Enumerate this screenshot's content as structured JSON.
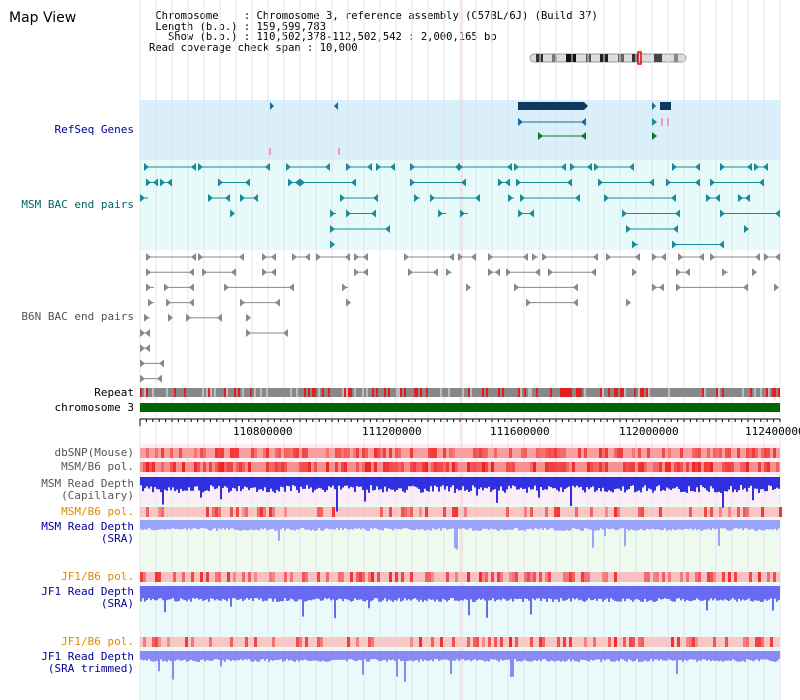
{
  "title": "Map View",
  "info": {
    "chromosome_key": "Chromosome",
    "chromosome_val": "Chromosome 3, reference assembly (C57BL/6J) (Build 37)",
    "length_key": "Length (b.p.)",
    "length_val": "159,599,783",
    "show_key": "Show (b.p.)",
    "show_val": "110,502,378-112,502,542 : 2,000,165 bp",
    "coverage_key": "Read coverage check span",
    "coverage_val": "10,000"
  },
  "tracks": {
    "refseq": "RefSeq Genes",
    "msm_bac": "MSM BAC end pairs",
    "b6n_bac": "B6N BAC end pairs",
    "repeat": "Repeat",
    "chromosome": "chromosome 3",
    "dbsnp": "dbSNP(Mouse)",
    "msm_b6_pol": "MSM/B6 pol.",
    "msm_read_depth_cap_1": "MSM Read Depth",
    "msm_read_depth_cap_2": "(Capillary)",
    "msm_b6_pol_2": "MSM/B6 pol.",
    "msm_read_depth_sra_1": "MSM Read Depth",
    "msm_read_depth_sra_2": "(SRA)",
    "jf1_b6_pol": "JF1/B6 pol.",
    "jf1_read_depth_sra_1": "JF1 Read Depth",
    "jf1_read_depth_sra_2": "(SRA)",
    "jf1_b6_pol_2": "JF1/B6 pol.",
    "jf1_read_depth_trim_1": "JF1 Read Depth",
    "jf1_read_depth_trim_2": "(SRA trimmed)"
  },
  "axis": {
    "ticks": [
      "110800000",
      "111200000",
      "111600000",
      "112000000",
      "112400000"
    ]
  },
  "colors": {
    "refseq_bg": "#d9f0fa",
    "msm_bg": "#e6fafa",
    "gene": "#0d3a5e",
    "msm_feature": "#1a8a9a",
    "b6n_feature": "#888888",
    "chromosome_bar": "#006600",
    "depth_blue": "#3030e0",
    "depth_light": "#9aa4f8",
    "pol_red": "#ee3333"
  }
}
